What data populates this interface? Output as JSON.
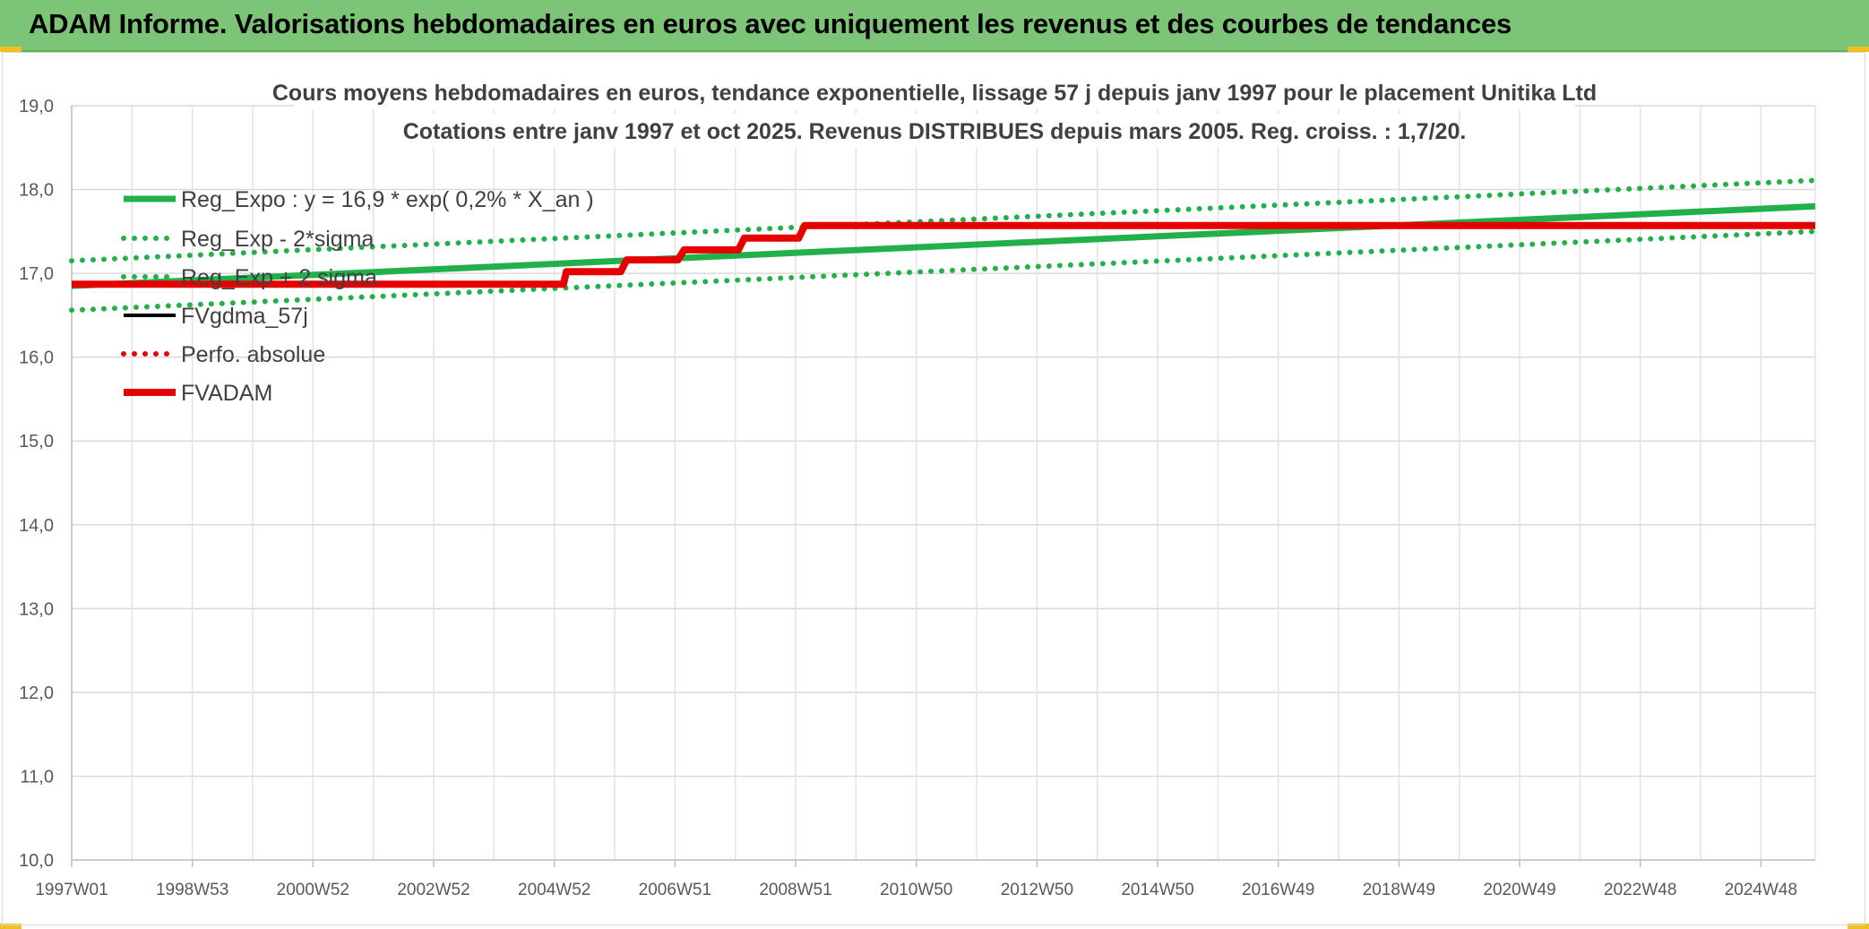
{
  "header": {
    "title": "ADAM Informe. Valorisations hebdomadaires en euros avec uniquement les revenus et des courbes de tendances"
  },
  "colors": {
    "header_bg": "#7cc576",
    "reg_expo": "#22b04b",
    "sigma_bands": "#22b04b",
    "fvgdma": "#000000",
    "perfo_absolue": "#e60000",
    "fvadam": "#e60000"
  },
  "chart_data": {
    "type": "line",
    "title_lines": [
      "Cours moyens hebdomadaires en euros, tendance exponentielle, lissage 57 j depuis janv 1997 pour le placement Unitika Ltd",
      "Cotations entre janv 1997 et oct 2025. Revenus DISTRIBUES depuis mars 2005. Reg. croiss. : 1,7/20."
    ],
    "xlabel": "",
    "ylabel": "",
    "ylim": [
      10,
      19
    ],
    "y_ticks": [
      "10,0",
      "11,0",
      "12,0",
      "13,0",
      "14,0",
      "15,0",
      "16,0",
      "17,0",
      "18,0",
      "19,0"
    ],
    "x_ticks": [
      {
        "label": "1997W01",
        "year": 1997.0
      },
      {
        "label": "1998W53",
        "year": 1999.0
      },
      {
        "label": "2000W52",
        "year": 2001.0
      },
      {
        "label": "2002W52",
        "year": 2003.0
      },
      {
        "label": "2004W52",
        "year": 2005.0
      },
      {
        "label": "2006W51",
        "year": 2007.0
      },
      {
        "label": "2008W51",
        "year": 2009.0
      },
      {
        "label": "2010W50",
        "year": 2011.0
      },
      {
        "label": "2012W50",
        "year": 2013.0
      },
      {
        "label": "2014W50",
        "year": 2015.0
      },
      {
        "label": "2016W49",
        "year": 2017.0
      },
      {
        "label": "2018W49",
        "year": 2019.0
      },
      {
        "label": "2020W49",
        "year": 2021.0
      },
      {
        "label": "2022W48",
        "year": 2023.0
      },
      {
        "label": "2024W48",
        "year": 2025.0
      }
    ],
    "xlim": [
      1997.0,
      2025.9
    ],
    "grid": true,
    "legend_position": "top-left",
    "series": [
      {
        "name": "Reg_Expo : y = 16,9 * exp( 0,2% *  X_an )",
        "style": "solid-thick",
        "x": [
          1997.0,
          2025.9
        ],
        "y": [
          16.85,
          17.8
        ]
      },
      {
        "name": "Reg_Exp - 2*sigma",
        "style": "dotted",
        "x": [
          1997.0,
          2025.9
        ],
        "y": [
          16.56,
          17.5
        ]
      },
      {
        "name": "Reg_Exp + 2 sigma",
        "style": "dotted",
        "x": [
          1997.0,
          2025.9
        ],
        "y": [
          17.15,
          18.11
        ]
      },
      {
        "name": "FVgdma_57j",
        "style": "solid",
        "x": [
          1997.0,
          2005.15,
          2005.2,
          2006.1,
          2006.2,
          2007.05,
          2007.15,
          2008.05,
          2008.15,
          2009.05,
          2009.15,
          2025.9
        ],
        "y": [
          16.87,
          16.87,
          17.02,
          17.02,
          17.16,
          17.16,
          17.28,
          17.28,
          17.42,
          17.42,
          17.57,
          17.57
        ]
      },
      {
        "name": "Perfo. absolue",
        "style": "dotted",
        "x": [],
        "y": []
      },
      {
        "name": "FVADAM",
        "style": "solid-thick",
        "x": [
          1997.0,
          2005.15,
          2005.2,
          2006.1,
          2006.2,
          2007.05,
          2007.15,
          2008.05,
          2008.15,
          2009.05,
          2009.15,
          2025.9
        ],
        "y": [
          16.87,
          16.87,
          17.02,
          17.02,
          17.16,
          17.16,
          17.28,
          17.28,
          17.42,
          17.42,
          17.57,
          17.57
        ]
      }
    ]
  }
}
